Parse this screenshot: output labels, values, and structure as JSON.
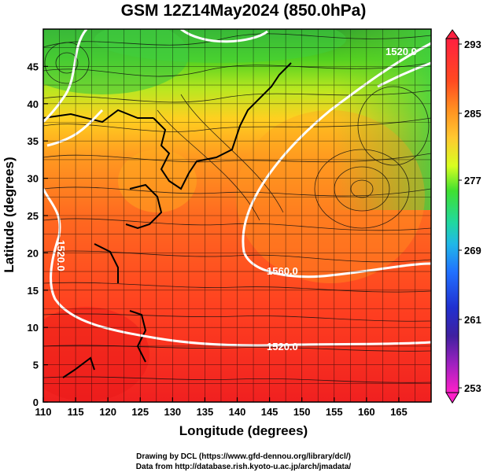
{
  "title": "GSM 12Z14May2024 (850.0hPa)",
  "axes": {
    "xlabel": "Longitude (degrees)",
    "ylabel": "Latitude  (degrees)",
    "xlim": [
      110,
      170
    ],
    "ylim": [
      0,
      50
    ],
    "x_ticks": [
      "110",
      "115",
      "120",
      "125",
      "130",
      "135",
      "140",
      "145",
      "150",
      "155",
      "160",
      "165"
    ],
    "y_ticks": [
      "0",
      "5",
      "10",
      "15",
      "20",
      "25",
      "30",
      "35",
      "40",
      "45"
    ]
  },
  "colorbar": {
    "labels": [
      "293",
      "285",
      "277",
      "269",
      "261",
      "253"
    ],
    "colors": [
      "#ff2040",
      "#ff4a20",
      "#ff8a20",
      "#ffc02a",
      "#d8ff20",
      "#5cf020",
      "#20e080",
      "#20c8d8",
      "#2090ff",
      "#2040e0",
      "#3020b0",
      "#8020c0",
      "#d020c0",
      "#ff20c0"
    ]
  },
  "contours": {
    "labels": [
      "1560.0",
      "1520.0",
      "1520.0",
      "1520.0"
    ]
  },
  "credits": {
    "line1": "Drawing by DCL (https://www.gfd-dennou.org/library/dcl/)",
    "line2": "Data from http://database.rish.kyoto-u.ac.jp/arch/jmadata/"
  }
}
